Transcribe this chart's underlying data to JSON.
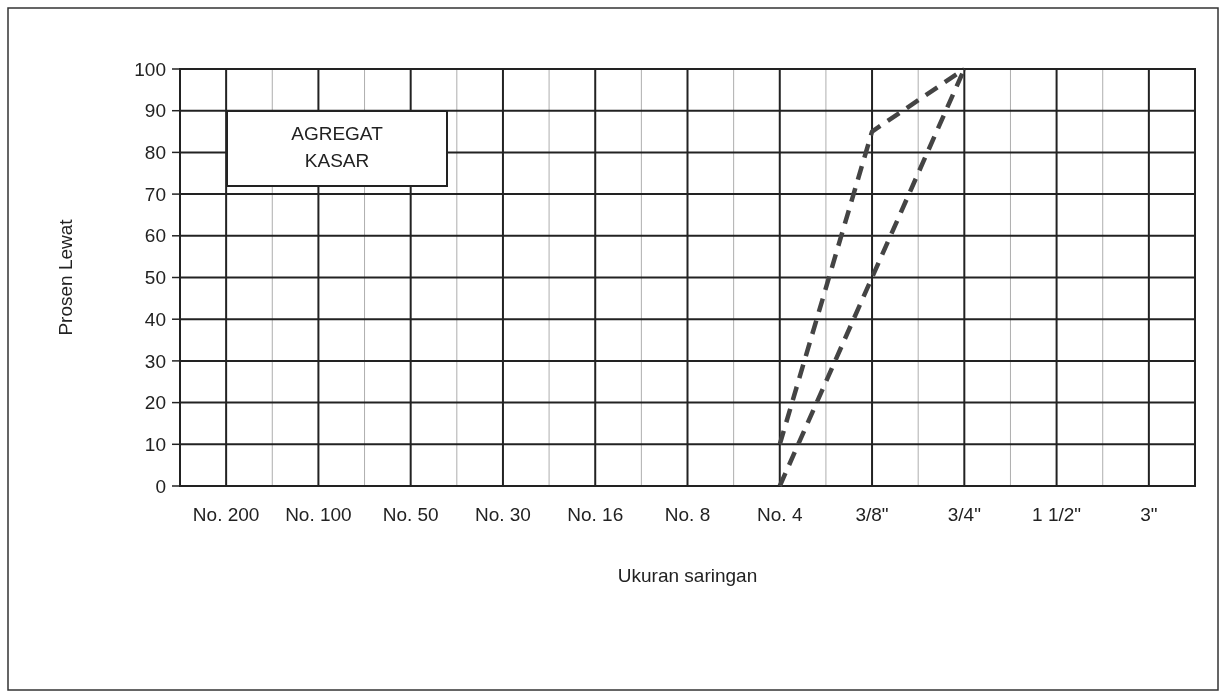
{
  "chart_data": {
    "type": "line",
    "xlabel": "Ukuran saringan",
    "ylabel": "Prosen Lewat",
    "categories": [
      "No. 200",
      "No. 100",
      "No. 50",
      "No. 30",
      "No. 16",
      "No. 8",
      "No. 4",
      "3/8\"",
      "3/4\"",
      "1 1/2\"",
      "3\""
    ],
    "series": [
      {
        "color": "#444444",
        "values": [
          null,
          null,
          null,
          null,
          null,
          null,
          10,
          85,
          100,
          null,
          null
        ]
      },
      {
        "color": "#444444",
        "values": [
          null,
          null,
          null,
          null,
          null,
          null,
          0,
          50,
          100,
          null,
          null
        ]
      }
    ],
    "ylim": [
      0,
      100
    ],
    "yticks": [
      0,
      10,
      20,
      30,
      40,
      50,
      60,
      70,
      80,
      90,
      100
    ],
    "grid": true,
    "line_style": "dashed",
    "marker": "none",
    "annotations": [
      "AGREGAT KASAR"
    ]
  }
}
